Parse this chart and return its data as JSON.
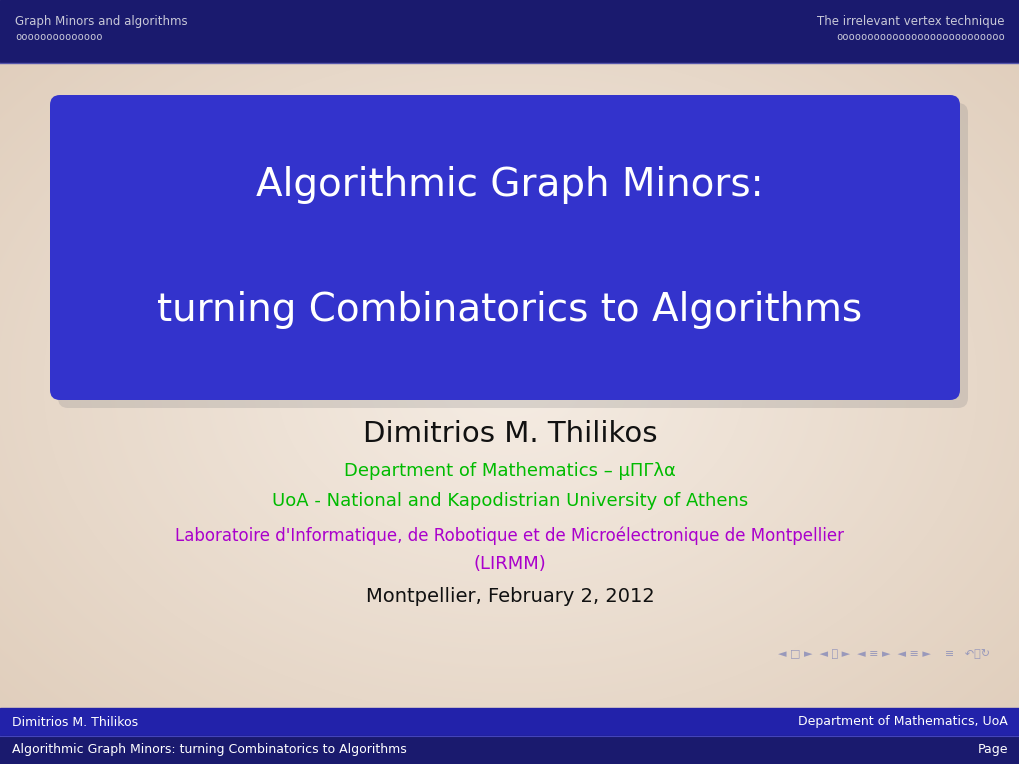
{
  "bg_color_center": "#f5ece3",
  "bg_color_edge": "#e8d8c8",
  "header_bg": "#1a1a6e",
  "header_text_color": "#c8c8d8",
  "header_left": "Graph Minors and algorithms",
  "header_dots_left": "oooooooooooooo",
  "header_right": "The irrelevant vertex technique",
  "header_dots_right": "ooooooooooooooooooooooooooo",
  "title_box_color": "#3333cc",
  "title_line1": "Algorithmic Graph Minors:",
  "title_line2": "turning Combinatorics to Algorithms",
  "title_text_color": "#ffffff",
  "author": "Dimitrios M. Thilikos",
  "author_color": "#111111",
  "dept_line1": "Department of Mathematics – μΠΓλα",
  "dept_line1_color": "#00bb00",
  "dept_line2": "UoA - National and Kapodistrian University of Athens",
  "dept_line2_color": "#00bb00",
  "dept_line3": "Laboratoire d'Informatique, de Robotique et de Microélectronique de Montpellier",
  "dept_line3_color": "#aa00cc",
  "dept_line4": "(LIRMM)",
  "dept_line4_color": "#aa00cc",
  "date": "Montpellier, February 2, 2012",
  "date_color": "#111111",
  "footer_bg1": "#2222aa",
  "footer_bg2": "#1a1a6e",
  "footer_left1": "Dimitrios M. Thilikos",
  "footer_right1": "Department of Mathematics, UoA",
  "footer_left2": "Algorithmic Graph Minors: turning Combinatorics to Algorithms",
  "footer_right2": "Page",
  "footer_text_color": "#ffffff",
  "nav_color": "#9999bb"
}
